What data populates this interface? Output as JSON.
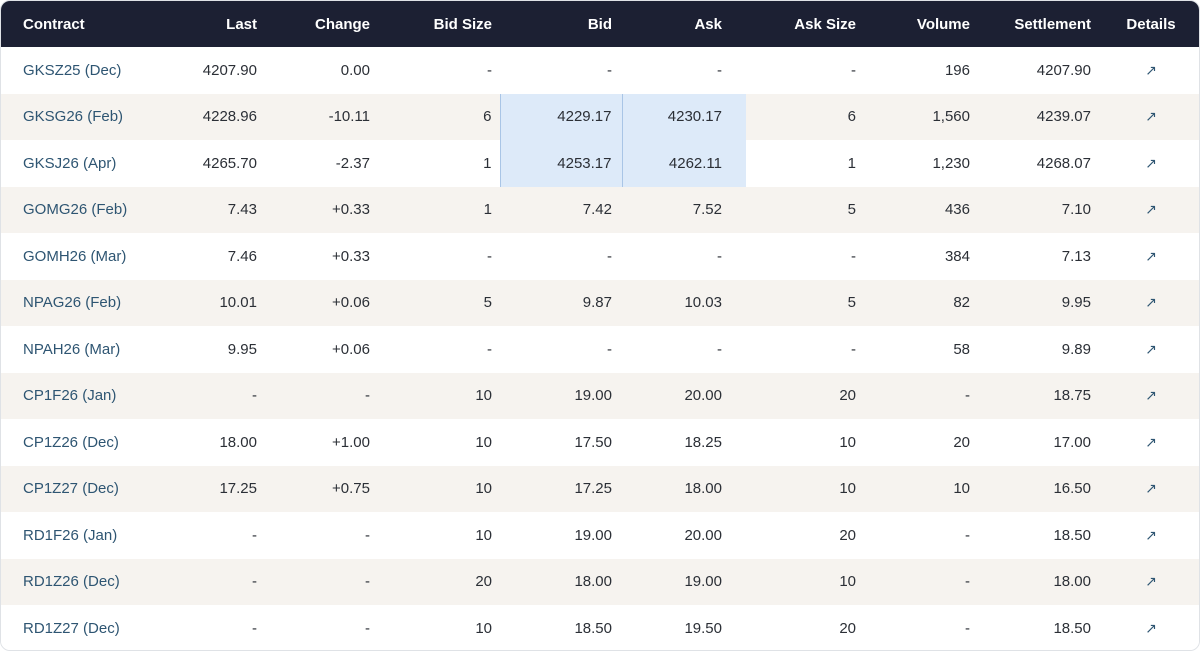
{
  "table": {
    "headers": {
      "contract": "Contract",
      "last": "Last",
      "change": "Change",
      "bid_size": "Bid Size",
      "bid": "Bid",
      "ask": "Ask",
      "ask_size": "Ask Size",
      "volume": "Volume",
      "settlement": "Settlement",
      "details": "Details"
    },
    "details_icon": "arrow-up-right-icon",
    "details_glyph": "↗",
    "highlight_color": "#ddeaf9",
    "rows": [
      {
        "contract": "GKSZ25 (Dec)",
        "last": "4207.90",
        "change": "0.00",
        "bid_size": "-",
        "bid": "-",
        "ask": "-",
        "ask_size": "-",
        "volume": "196",
        "settlement": "4207.90",
        "highlight": false
      },
      {
        "contract": "GKSG26 (Feb)",
        "last": "4228.96",
        "change": "-10.11",
        "bid_size": "6",
        "bid": "4229.17",
        "ask": "4230.17",
        "ask_size": "6",
        "volume": "1,560",
        "settlement": "4239.07",
        "highlight": true
      },
      {
        "contract": "GKSJ26 (Apr)",
        "last": "4265.70",
        "change": "-2.37",
        "bid_size": "1",
        "bid": "4253.17",
        "ask": "4262.11",
        "ask_size": "1",
        "volume": "1,230",
        "settlement": "4268.07",
        "highlight": true
      },
      {
        "contract": "GOMG26 (Feb)",
        "last": "7.43",
        "change": "+0.33",
        "bid_size": "1",
        "bid": "7.42",
        "ask": "7.52",
        "ask_size": "5",
        "volume": "436",
        "settlement": "7.10",
        "highlight": false
      },
      {
        "contract": "GOMH26 (Mar)",
        "last": "7.46",
        "change": "+0.33",
        "bid_size": "-",
        "bid": "-",
        "ask": "-",
        "ask_size": "-",
        "volume": "384",
        "settlement": "7.13",
        "highlight": false
      },
      {
        "contract": "NPAG26 (Feb)",
        "last": "10.01",
        "change": "+0.06",
        "bid_size": "5",
        "bid": "9.87",
        "ask": "10.03",
        "ask_size": "5",
        "volume": "82",
        "settlement": "9.95",
        "highlight": false
      },
      {
        "contract": "NPAH26 (Mar)",
        "last": "9.95",
        "change": "+0.06",
        "bid_size": "-",
        "bid": "-",
        "ask": "-",
        "ask_size": "-",
        "volume": "58",
        "settlement": "9.89",
        "highlight": false
      },
      {
        "contract": "CP1F26 (Jan)",
        "last": "-",
        "change": "-",
        "bid_size": "10",
        "bid": "19.00",
        "ask": "20.00",
        "ask_size": "20",
        "volume": "-",
        "settlement": "18.75",
        "highlight": false
      },
      {
        "contract": "CP1Z26 (Dec)",
        "last": "18.00",
        "change": "+1.00",
        "bid_size": "10",
        "bid": "17.50",
        "ask": "18.25",
        "ask_size": "10",
        "volume": "20",
        "settlement": "17.00",
        "highlight": false
      },
      {
        "contract": "CP1Z27 (Dec)",
        "last": "17.25",
        "change": "+0.75",
        "bid_size": "10",
        "bid": "17.25",
        "ask": "18.00",
        "ask_size": "10",
        "volume": "10",
        "settlement": "16.50",
        "highlight": false
      },
      {
        "contract": "RD1F26 (Jan)",
        "last": "-",
        "change": "-",
        "bid_size": "10",
        "bid": "19.00",
        "ask": "20.00",
        "ask_size": "20",
        "volume": "-",
        "settlement": "18.50",
        "highlight": false
      },
      {
        "contract": "RD1Z26 (Dec)",
        "last": "-",
        "change": "-",
        "bid_size": "20",
        "bid": "18.00",
        "ask": "19.00",
        "ask_size": "10",
        "volume": "-",
        "settlement": "18.00",
        "highlight": false
      },
      {
        "contract": "RD1Z27 (Dec)",
        "last": "-",
        "change": "-",
        "bid_size": "10",
        "bid": "18.50",
        "ask": "19.50",
        "ask_size": "20",
        "volume": "-",
        "settlement": "18.50",
        "highlight": false
      }
    ]
  }
}
